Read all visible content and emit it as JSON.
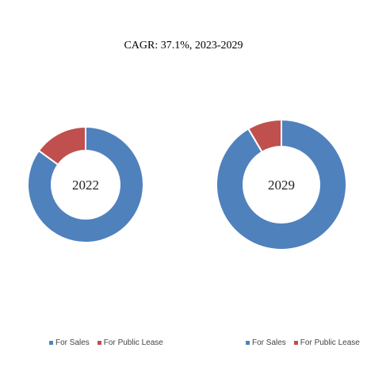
{
  "chart_data": [
    {
      "type": "pie",
      "donut": true,
      "title": "CAGR: 37.1%, 2023-2029",
      "center_label": "2022",
      "categories": [
        "For Sales",
        "For Public Lease"
      ],
      "values": [
        85,
        15
      ],
      "colors": [
        "#4F81BD",
        "#C0504D"
      ],
      "legend": "bottom"
    },
    {
      "type": "pie",
      "donut": true,
      "center_label": "2029",
      "categories": [
        "For Sales",
        "For Public Lease"
      ],
      "values": [
        91.5,
        8.5
      ],
      "colors": [
        "#4F81BD",
        "#C0504D"
      ],
      "legend": "bottom"
    }
  ]
}
